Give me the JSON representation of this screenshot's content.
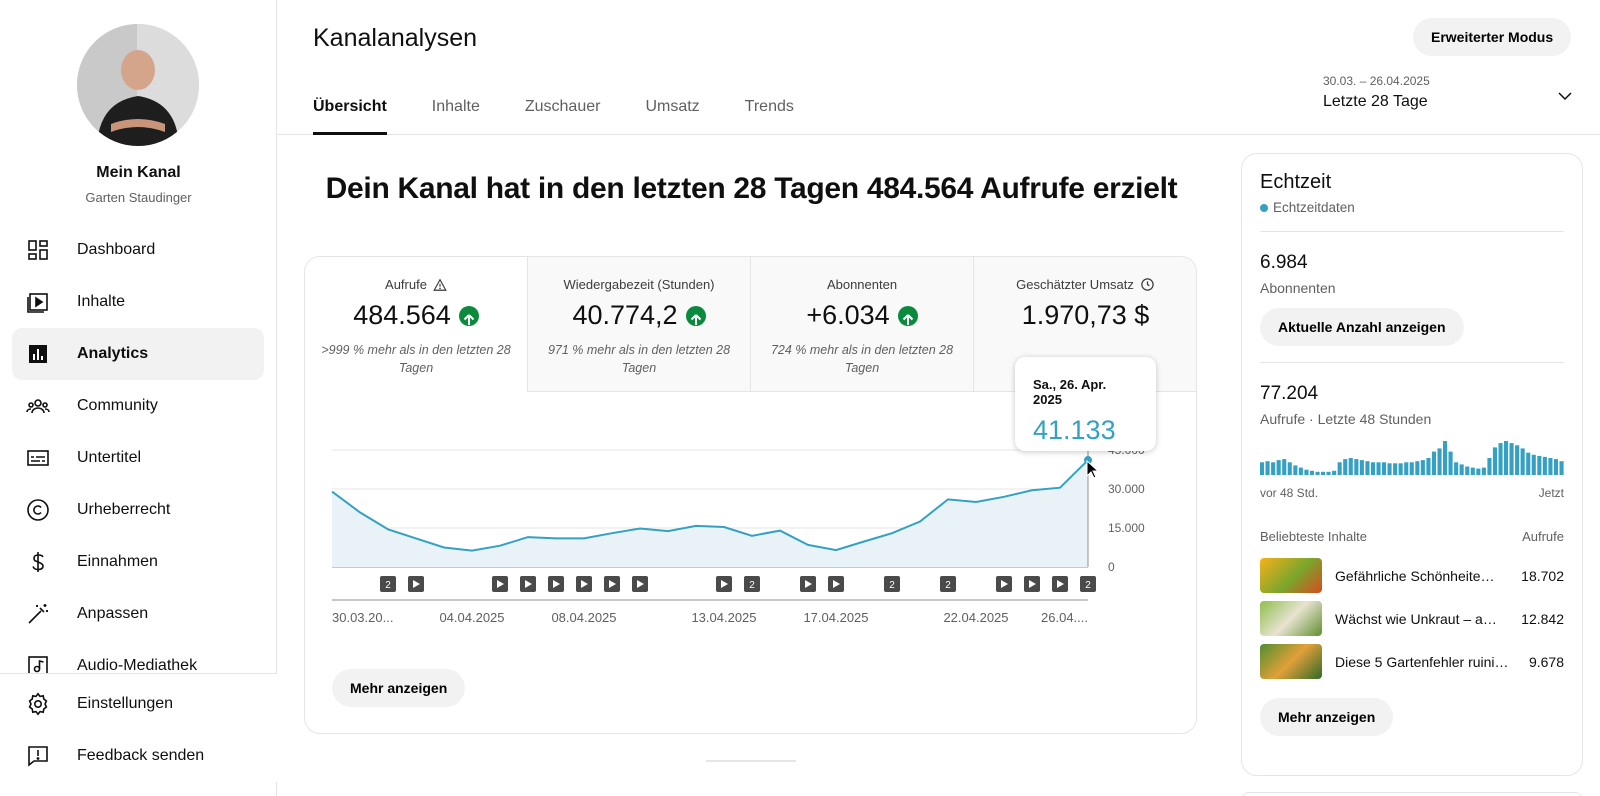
{
  "sidebar": {
    "channel_name": "Mein Kanal",
    "channel_handle": "Garten Staudinger",
    "items": [
      {
        "label": "Dashboard",
        "icon": "dashboard-icon"
      },
      {
        "label": "Inhalte",
        "icon": "content-icon"
      },
      {
        "label": "Analytics",
        "icon": "analytics-icon",
        "active": true
      },
      {
        "label": "Community",
        "icon": "community-icon"
      },
      {
        "label": "Untertitel",
        "icon": "subtitles-icon"
      },
      {
        "label": "Urheberrecht",
        "icon": "copyright-icon"
      },
      {
        "label": "Einnahmen",
        "icon": "dollar-icon"
      },
      {
        "label": "Anpassen",
        "icon": "magic-wand-icon"
      },
      {
        "label": "Audio-Mediathek",
        "icon": "audio-library-icon"
      }
    ],
    "bottom": [
      {
        "label": "Einstellungen",
        "icon": "gear-icon"
      },
      {
        "label": "Feedback senden",
        "icon": "feedback-icon"
      }
    ]
  },
  "header": {
    "title": "Kanalanalysen",
    "advanced_button": "Erweiterter Modus",
    "tabs": [
      "Übersicht",
      "Inhalte",
      "Zuschauer",
      "Umsatz",
      "Trends"
    ],
    "date_range": {
      "dates": "30.03. – 26.04.2025",
      "label": "Letzte 28 Tage"
    }
  },
  "main": {
    "headline": "Dein Kanal hat in den letzten 28 Tagen 484.564 Aufrufe erzielt",
    "metrics": [
      {
        "label": "Aufrufe",
        "value": "484.564",
        "trend": "up",
        "sub": ">999 % mehr als in den letzten 28 Tagen",
        "icon": "warning-icon"
      },
      {
        "label": "Wiedergabezeit (Stunden)",
        "value": "40.774,2",
        "trend": "up",
        "sub": "971 % mehr als in den letzten 28 Tagen"
      },
      {
        "label": "Abonnenten",
        "value": "+6.034",
        "trend": "up",
        "sub": "724 % mehr als in den letzten 28 Tagen"
      },
      {
        "label": "Geschätzter Umsatz",
        "value": "1.970,73 $",
        "icon": "clock-icon"
      }
    ],
    "more_button": "Mehr anzeigen",
    "tooltip": {
      "date": "Sa., 26. Apr. 2025",
      "value": "41.133"
    }
  },
  "chart_data": {
    "type": "area",
    "series": [
      {
        "name": "Aufrufe",
        "values": [
          29000,
          21000,
          14500,
          11000,
          7500,
          6300,
          8200,
          11500,
          11000,
          11000,
          13000,
          14800,
          13800,
          15800,
          15400,
          12000,
          14000,
          8500,
          6500,
          9800,
          13000,
          17500,
          26000,
          25000,
          27000,
          29500,
          30500,
          41133
        ]
      }
    ],
    "x_tick_labels": [
      "30.03.20...",
      "04.04.2025",
      "08.04.2025",
      "13.04.2025",
      "17.04.2025",
      "22.04.2025",
      "26.04...."
    ],
    "y_tick_labels": [
      "0",
      "15.000",
      "30.000",
      "45.000"
    ],
    "ylim": [
      0,
      45000
    ],
    "grid": true,
    "markers": [
      {
        "day": 2,
        "kind": "count",
        "text": "2"
      },
      {
        "day": 3,
        "kind": "video"
      },
      {
        "day": 6,
        "kind": "video"
      },
      {
        "day": 7,
        "kind": "video"
      },
      {
        "day": 8,
        "kind": "video"
      },
      {
        "day": 9,
        "kind": "video"
      },
      {
        "day": 10,
        "kind": "video"
      },
      {
        "day": 11,
        "kind": "video"
      },
      {
        "day": 14,
        "kind": "video"
      },
      {
        "day": 15,
        "kind": "count",
        "text": "2"
      },
      {
        "day": 17,
        "kind": "video"
      },
      {
        "day": 18,
        "kind": "video"
      },
      {
        "day": 20,
        "kind": "count",
        "text": "2"
      },
      {
        "day": 22,
        "kind": "count",
        "text": "2"
      },
      {
        "day": 24,
        "kind": "video"
      },
      {
        "day": 25,
        "kind": "video"
      },
      {
        "day": 26,
        "kind": "video"
      },
      {
        "day": 27,
        "kind": "count",
        "text": "2"
      }
    ],
    "colors": {
      "line": "#34a0c3",
      "fill": "#e9f3f7"
    }
  },
  "realtime": {
    "title": "Echtzeit",
    "subtitle": "Echtzeitdaten",
    "subscribers": "6.984",
    "subscribers_label": "Abonnenten",
    "show_count_button": "Aktuelle Anzahl anzeigen",
    "views": "77.204",
    "views_label": "Aufrufe · Letzte 48 Stunden",
    "bars": [
      12,
      13,
      12,
      14,
      15,
      12,
      9,
      7,
      5,
      4,
      3,
      3,
      3,
      4,
      12,
      15,
      16,
      15,
      14,
      13,
      12,
      12,
      12,
      11,
      11,
      11,
      12,
      12,
      13,
      14,
      16,
      22,
      25,
      32,
      22,
      12,
      10,
      8,
      7,
      6,
      7,
      16,
      26,
      30,
      32,
      30,
      28,
      25,
      21,
      19,
      18,
      17,
      16,
      15,
      13
    ],
    "axis_start": "vor 48 Std.",
    "axis_end": "Jetzt",
    "top_content_label": "Beliebteste Inhalte",
    "top_content_metric": "Aufrufe",
    "top_content": [
      {
        "title": "Gefährliche Schönheiten ...",
        "value": "18.702"
      },
      {
        "title": "Wächst wie Unkraut – aber ...",
        "value": "12.842"
      },
      {
        "title": "Diese 5 Gartenfehler ruinieren ...",
        "value": "9.678"
      }
    ],
    "more_button": "Mehr anzeigen"
  }
}
